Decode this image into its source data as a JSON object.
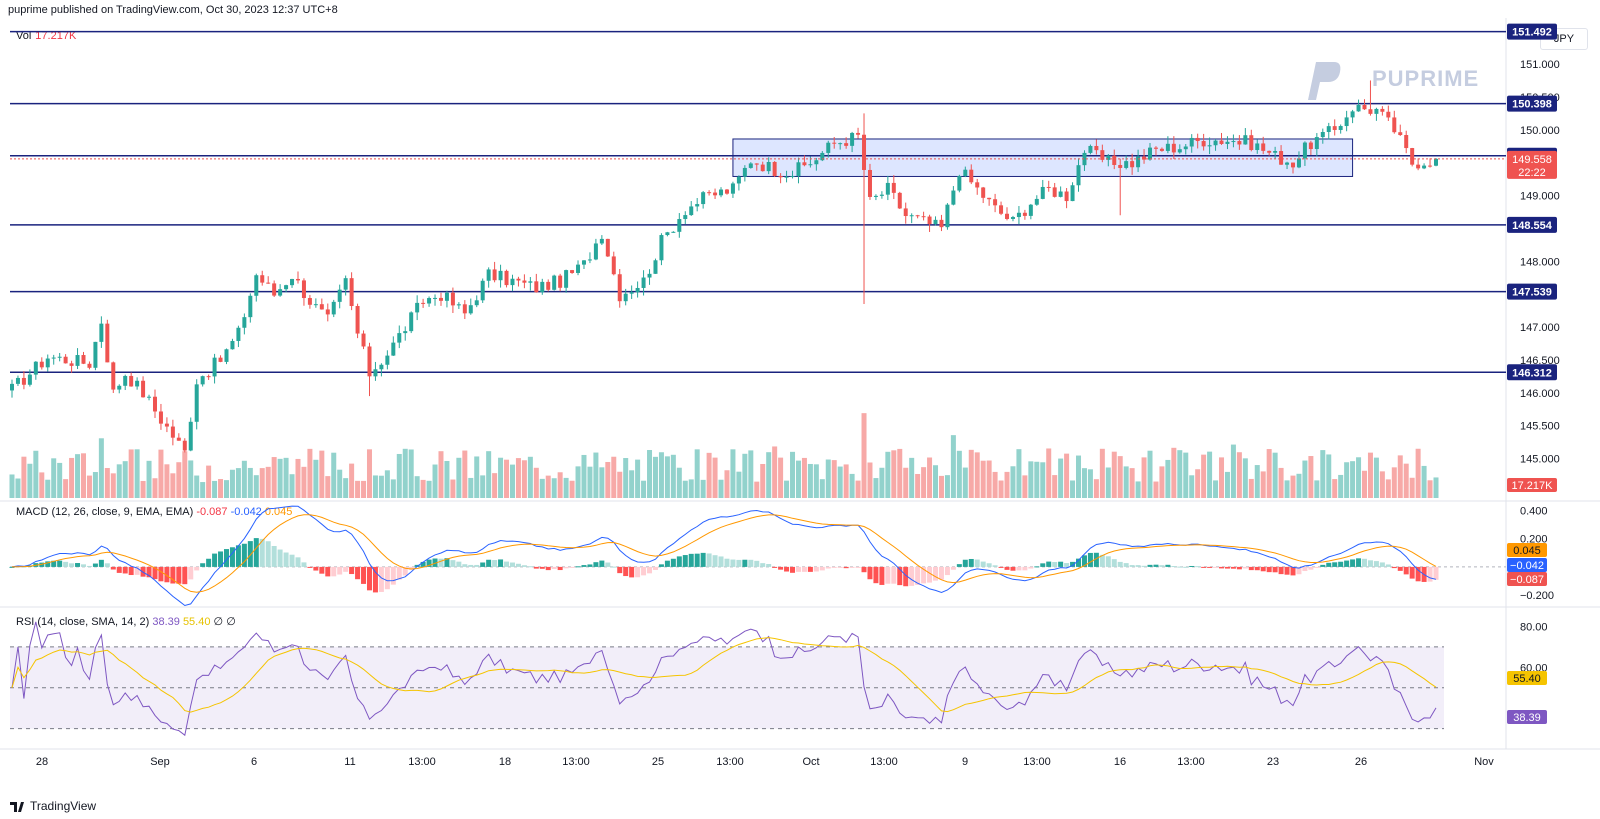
{
  "header": {
    "publisher_line": "puprime published on TradingView.com, Oct 30, 2023 12:37 UTC+8"
  },
  "currency_label": "JPY",
  "brand": {
    "name": "PUPRIME"
  },
  "footer": {
    "logo_text": "TradingView"
  },
  "colors": {
    "up": "#26a69a",
    "down": "#ef5350",
    "level_line": "#1a237e",
    "box": "#2962ff",
    "macd": "#2962ff",
    "signal": "#ff9800",
    "rsi": "#7e57c2",
    "rsi_ma": "#f5c400"
  },
  "chart_data": [
    {
      "type": "candlestick",
      "pane": "price",
      "ylim": [
        144.4,
        151.7
      ],
      "price_ticks": [
        "151.000",
        "150.500",
        "150.000",
        "149.000",
        "148.000",
        "147.000",
        "146.500",
        "146.000",
        "145.500",
        "145.000"
      ],
      "levels": [
        {
          "value": 151.492,
          "label": "151.492"
        },
        {
          "value": 150.398,
          "label": "150.398"
        },
        {
          "value": 149.606,
          "label": "149.606"
        },
        {
          "value": 148.554,
          "label": "148.554"
        },
        {
          "value": 147.539,
          "label": "147.539"
        },
        {
          "value": 146.312,
          "label": "146.312"
        }
      ],
      "last_price": {
        "value": 149.558,
        "label": "149.558",
        "countdown": "22:22"
      },
      "consolidation_box": {
        "from": "Sep 26 13:00",
        "to": "Oct 26",
        "high": 149.86,
        "low": 149.29
      },
      "x_ticks": [
        "28",
        "Sep",
        "6",
        "11",
        "13:00",
        "18",
        "13:00",
        "25",
        "13:00",
        "Oct",
        "13:00",
        "9",
        "13:00",
        "16",
        "13:00",
        "23",
        "26",
        "Nov"
      ],
      "candle_count": 240,
      "anchors": [
        {
          "i": 0,
          "p": 146.05
        },
        {
          "i": 6,
          "p": 146.55
        },
        {
          "i": 13,
          "p": 146.45
        },
        {
          "i": 15,
          "p": 147.1
        },
        {
          "i": 17,
          "p": 146.0
        },
        {
          "i": 19,
          "p": 146.3
        },
        {
          "i": 22,
          "p": 146.0
        },
        {
          "i": 25,
          "p": 145.6
        },
        {
          "i": 29,
          "p": 145.1
        },
        {
          "i": 31,
          "p": 146.2
        },
        {
          "i": 35,
          "p": 146.5
        },
        {
          "i": 38,
          "p": 146.9
        },
        {
          "i": 41,
          "p": 147.8
        },
        {
          "i": 44,
          "p": 147.5
        },
        {
          "i": 47,
          "p": 147.8
        },
        {
          "i": 50,
          "p": 147.4
        },
        {
          "i": 53,
          "p": 147.1
        },
        {
          "i": 56,
          "p": 147.7
        },
        {
          "i": 58,
          "p": 146.9
        },
        {
          "i": 60,
          "p": 146.3
        },
        {
          "i": 63,
          "p": 146.6
        },
        {
          "i": 66,
          "p": 147.0
        },
        {
          "i": 69,
          "p": 147.4
        },
        {
          "i": 72,
          "p": 147.5
        },
        {
          "i": 76,
          "p": 147.2
        },
        {
          "i": 80,
          "p": 147.8
        },
        {
          "i": 84,
          "p": 147.7
        },
        {
          "i": 88,
          "p": 147.6
        },
        {
          "i": 92,
          "p": 147.7
        },
        {
          "i": 96,
          "p": 147.95
        },
        {
          "i": 99,
          "p": 148.45
        },
        {
          "i": 102,
          "p": 147.5
        },
        {
          "i": 106,
          "p": 147.7
        },
        {
          "i": 109,
          "p": 148.3
        },
        {
          "i": 113,
          "p": 148.8
        },
        {
          "i": 117,
          "p": 149.0
        },
        {
          "i": 121,
          "p": 149.1
        },
        {
          "i": 124,
          "p": 149.55
        },
        {
          "i": 128,
          "p": 149.4
        },
        {
          "i": 131,
          "p": 149.35
        },
        {
          "i": 134,
          "p": 149.5
        },
        {
          "i": 138,
          "p": 149.8
        },
        {
          "i": 142,
          "p": 149.9
        },
        {
          "i": 144,
          "p": 148.9
        },
        {
          "i": 147,
          "p": 149.1
        },
        {
          "i": 150,
          "p": 148.7
        },
        {
          "i": 153,
          "p": 148.6
        },
        {
          "i": 156,
          "p": 148.5
        },
        {
          "i": 159,
          "p": 149.4
        },
        {
          "i": 162,
          "p": 149.1
        },
        {
          "i": 165,
          "p": 148.8
        },
        {
          "i": 168,
          "p": 148.6
        },
        {
          "i": 171,
          "p": 148.9
        },
        {
          "i": 174,
          "p": 149.1
        },
        {
          "i": 177,
          "p": 149.0
        },
        {
          "i": 180,
          "p": 149.7
        },
        {
          "i": 184,
          "p": 149.5
        },
        {
          "i": 188,
          "p": 149.5
        },
        {
          "i": 192,
          "p": 149.7
        },
        {
          "i": 196,
          "p": 149.75
        },
        {
          "i": 200,
          "p": 149.85
        },
        {
          "i": 204,
          "p": 149.85
        },
        {
          "i": 208,
          "p": 149.8
        },
        {
          "i": 212,
          "p": 149.6
        },
        {
          "i": 215,
          "p": 149.5
        },
        {
          "i": 218,
          "p": 149.8
        },
        {
          "i": 222,
          "p": 150.0
        },
        {
          "i": 225,
          "p": 150.35
        },
        {
          "i": 229,
          "p": 150.3
        },
        {
          "i": 232,
          "p": 150.0
        },
        {
          "i": 235,
          "p": 149.5
        },
        {
          "i": 239,
          "p": 149.56
        }
      ]
    },
    {
      "type": "bar",
      "pane": "volume",
      "name": "Vol",
      "last_value": "17.217K"
    },
    {
      "type": "line",
      "pane": "macd",
      "title": "MACD (12, 26, close, 9, EMA, EMA)",
      "values_text": {
        "histogram": "-0.087",
        "macd": "-0.042",
        "signal": "0.045"
      },
      "ylim": [
        -0.27,
        0.46
      ],
      "y_ticks": [
        "0.400",
        "0.200",
        "−0.200"
      ],
      "badges": [
        "0.045",
        "−0.042",
        "−0.087"
      ]
    },
    {
      "type": "line",
      "pane": "rsi",
      "title": "RSI (14, close, SMA, 14, 2)",
      "values_text": {
        "rsi": "38.39",
        "ma": "55.40",
        "extra1": "∅",
        "extra2": "∅"
      },
      "ylim": [
        22,
        88
      ],
      "bands": [
        70,
        50,
        30
      ],
      "y_ticks": [
        "80.00",
        "60.00"
      ],
      "badges": [
        "55.40",
        "38.39"
      ]
    }
  ]
}
